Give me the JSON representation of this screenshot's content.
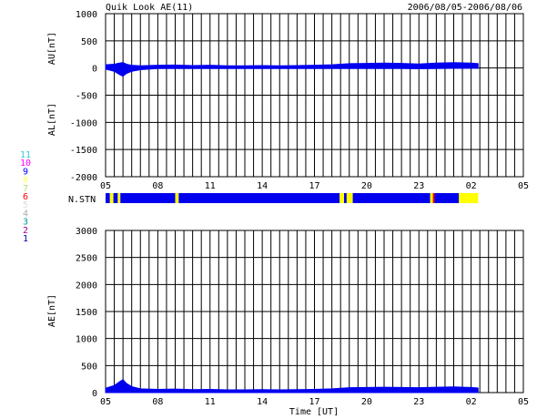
{
  "header": {
    "title": "Quik Look AE(11)",
    "date_range": "2006/08/05-2006/08/06"
  },
  "station_legend": {
    "items": [
      {
        "label": "11",
        "color": "#33cccc"
      },
      {
        "label": "10",
        "color": "#ff00ff"
      },
      {
        "label": "9",
        "color": "#0000ff"
      },
      {
        "label": "8",
        "color": "#ffff66"
      },
      {
        "label": "7",
        "color": "#aadd77"
      },
      {
        "label": "6",
        "color": "#ff0000"
      },
      {
        "label": "5",
        "color": "#dddddd"
      },
      {
        "label": "4",
        "color": "#aaaaaa"
      },
      {
        "label": "3",
        "color": "#009999"
      },
      {
        "label": "2",
        "color": "#990099"
      },
      {
        "label": "1",
        "color": "#000099"
      }
    ]
  },
  "chart_data": [
    {
      "type": "area",
      "panel": "AU/AL",
      "ylabel_top": "AU[nT]",
      "ylabel_bottom": "AL[nT]",
      "ylim": [
        -2000,
        1000
      ],
      "yticks": [
        1000,
        500,
        0,
        -500,
        -1000,
        -1500,
        -2000
      ],
      "xlim_hours": [
        5,
        29
      ],
      "xticks": [
        "05",
        "08",
        "11",
        "14",
        "17",
        "20",
        "23",
        "02",
        "05"
      ],
      "grid": true,
      "series": [
        {
          "name": "AU",
          "x": [
            5.0,
            5.5,
            5.8,
            6.0,
            6.2,
            6.5,
            7.0,
            8.0,
            9.0,
            10.0,
            11.0,
            12.0,
            13.0,
            14.0,
            15.0,
            16.0,
            17.0,
            18.0,
            19.0,
            20.0,
            21.0,
            22.0,
            23.0,
            24.0,
            25.0,
            26.0,
            26.4
          ],
          "values": [
            60,
            70,
            90,
            100,
            70,
            50,
            40,
            50,
            55,
            45,
            50,
            40,
            40,
            45,
            40,
            45,
            50,
            60,
            80,
            85,
            90,
            85,
            75,
            90,
            100,
            90,
            80
          ]
        },
        {
          "name": "AL",
          "x": [
            5.0,
            5.5,
            5.8,
            6.0,
            6.2,
            6.5,
            7.0,
            8.0,
            9.0,
            10.0,
            11.0,
            12.0,
            13.0,
            14.0,
            15.0,
            16.0,
            17.0,
            18.0,
            19.0,
            20.0,
            21.0,
            22.0,
            23.0,
            24.0,
            25.0,
            26.0,
            26.4
          ],
          "values": [
            -20,
            -60,
            -120,
            -150,
            -100,
            -60,
            -30,
            -10,
            -10,
            -10,
            -10,
            -10,
            -10,
            -10,
            -10,
            -10,
            -10,
            -10,
            -10,
            -10,
            -10,
            -10,
            -15,
            -10,
            -5,
            -5,
            -5
          ]
        }
      ]
    },
    {
      "type": "area",
      "panel": "AE",
      "ylabel": "AE[nT]",
      "xlabel": "Time [UT]",
      "ylim": [
        0,
        3000
      ],
      "yticks": [
        3000,
        2500,
        2000,
        1500,
        1000,
        500,
        0
      ],
      "xlim_hours": [
        5,
        29
      ],
      "xticks": [
        "05",
        "08",
        "11",
        "14",
        "17",
        "20",
        "23",
        "02",
        "05"
      ],
      "grid": true,
      "series": [
        {
          "name": "AE",
          "x": [
            5.0,
            5.5,
            5.8,
            6.0,
            6.2,
            6.5,
            7.0,
            8.0,
            9.0,
            10.0,
            11.0,
            12.0,
            13.0,
            14.0,
            15.0,
            16.0,
            17.0,
            18.0,
            19.0,
            20.0,
            21.0,
            22.0,
            23.0,
            24.0,
            25.0,
            26.0,
            26.4
          ],
          "values": [
            80,
            130,
            200,
            240,
            170,
            110,
            70,
            60,
            65,
            55,
            60,
            50,
            50,
            55,
            50,
            55,
            60,
            70,
            90,
            95,
            100,
            95,
            90,
            100,
            105,
            95,
            85
          ]
        }
      ]
    }
  ],
  "n_stations": {
    "label": "N.STN",
    "segments": [
      {
        "start": 5.0,
        "end": 5.25,
        "value": 9
      },
      {
        "start": 5.25,
        "end": 5.45,
        "value": 8
      },
      {
        "start": 5.45,
        "end": 5.7,
        "value": 9
      },
      {
        "start": 5.7,
        "end": 5.85,
        "value": 8
      },
      {
        "start": 5.85,
        "end": 9.0,
        "value": 9
      },
      {
        "start": 9.0,
        "end": 9.2,
        "value": 8
      },
      {
        "start": 9.2,
        "end": 18.45,
        "value": 9
      },
      {
        "start": 18.45,
        "end": 18.7,
        "value": 8
      },
      {
        "start": 18.7,
        "end": 18.85,
        "value": 9
      },
      {
        "start": 18.85,
        "end": 19.2,
        "value": 8
      },
      {
        "start": 19.2,
        "end": 23.65,
        "value": 9
      },
      {
        "start": 23.65,
        "end": 23.8,
        "value": 8
      },
      {
        "start": 23.8,
        "end": 23.9,
        "value": 6
      },
      {
        "start": 23.9,
        "end": 25.3,
        "value": 9
      },
      {
        "start": 25.3,
        "end": 26.4,
        "value": 8
      }
    ]
  },
  "colors": {
    "series_fill": "#0000ee",
    "grid": "#000000",
    "station_yellow": "#ffff00",
    "station_red": "#ff0000"
  }
}
